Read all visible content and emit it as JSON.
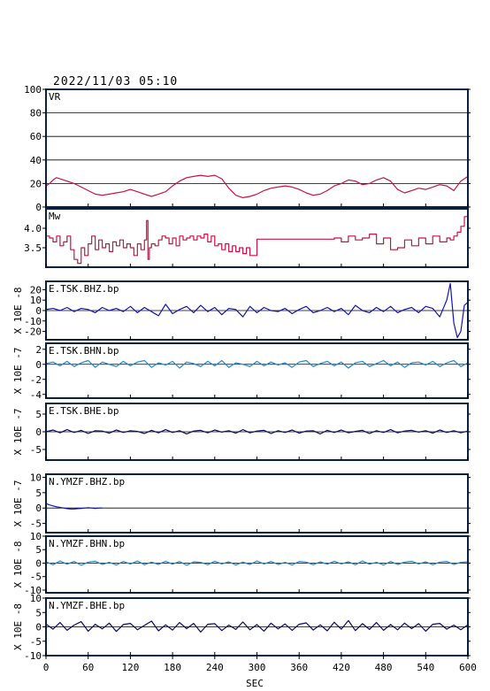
{
  "header": {
    "datetime": "2022/11/03 05:10"
  },
  "colors": {
    "frame": "#0a1f44",
    "vr": "#cc1144",
    "mw": "#cc1144",
    "dark_blue": "#1414b4",
    "light_blue": "#1e8ad6",
    "navy": "#0a0a60"
  },
  "chart_data": [
    {
      "type": "line",
      "name": "vr-panel",
      "label": "VR",
      "ylabel": "",
      "ylim": [
        0,
        100
      ],
      "yticks": [
        0,
        20,
        40,
        60,
        80,
        100
      ],
      "grid": true,
      "color": "vr",
      "x": [
        0,
        5,
        10,
        15,
        20,
        25,
        30,
        40,
        50,
        60,
        70,
        80,
        90,
        100,
        110,
        120,
        130,
        140,
        150,
        160,
        170,
        180,
        190,
        200,
        210,
        220,
        230,
        240,
        250,
        260,
        270,
        280,
        290,
        300,
        310,
        320,
        330,
        340,
        350,
        360,
        370,
        380,
        390,
        400,
        410,
        420,
        430,
        440,
        450,
        460,
        470,
        480,
        490,
        500,
        510,
        520,
        530,
        540,
        550,
        560,
        570,
        580,
        590,
        600
      ],
      "y": [
        18,
        20,
        23,
        25,
        24,
        23,
        22,
        20,
        17,
        14,
        11,
        10,
        11,
        12,
        13,
        15,
        13,
        11,
        9,
        11,
        13,
        18,
        22,
        25,
        26,
        27,
        26,
        27,
        24,
        16,
        10,
        8,
        9,
        11,
        14,
        16,
        17,
        18,
        17,
        15,
        12,
        10,
        11,
        14,
        18,
        20,
        23,
        22,
        19,
        20,
        23,
        25,
        22,
        15,
        12,
        14,
        16,
        15,
        17,
        19,
        18,
        14,
        22,
        26
      ]
    },
    {
      "type": "line",
      "name": "mw-panel",
      "label": "Mw",
      "ylabel": "",
      "ylim": [
        3.0,
        4.5
      ],
      "yticks": [
        3.5,
        4.0
      ],
      "ytick_labels": [
        "3.5",
        "4.0"
      ],
      "grid": false,
      "color": "mw",
      "x": [
        0,
        5,
        10,
        15,
        20,
        25,
        30,
        35,
        40,
        45,
        50,
        55,
        60,
        65,
        70,
        75,
        80,
        85,
        90,
        95,
        100,
        105,
        110,
        115,
        120,
        125,
        130,
        135,
        140,
        143,
        145,
        147,
        150,
        155,
        160,
        165,
        170,
        175,
        180,
        185,
        190,
        195,
        200,
        205,
        210,
        215,
        220,
        225,
        230,
        235,
        240,
        245,
        250,
        255,
        260,
        265,
        270,
        275,
        280,
        285,
        290,
        300,
        310,
        320,
        330,
        340,
        350,
        360,
        370,
        380,
        390,
        400,
        410,
        420,
        430,
        440,
        450,
        460,
        470,
        480,
        490,
        500,
        510,
        520,
        530,
        540,
        550,
        560,
        570,
        575,
        580,
        585,
        590,
        595,
        600
      ],
      "y": [
        3.8,
        3.75,
        3.65,
        3.8,
        3.55,
        3.65,
        3.8,
        3.45,
        3.2,
        3.1,
        3.5,
        3.3,
        3.6,
        3.8,
        3.45,
        3.7,
        3.5,
        3.6,
        3.4,
        3.65,
        3.55,
        3.7,
        3.5,
        3.6,
        3.5,
        3.3,
        3.6,
        3.45,
        3.7,
        4.2,
        3.2,
        3.5,
        3.6,
        3.55,
        3.7,
        3.8,
        3.75,
        3.6,
        3.75,
        3.55,
        3.8,
        3.7,
        3.75,
        3.8,
        3.7,
        3.8,
        3.75,
        3.85,
        3.65,
        3.8,
        3.55,
        3.6,
        3.45,
        3.6,
        3.4,
        3.55,
        3.4,
        3.5,
        3.35,
        3.5,
        3.3,
        3.72,
        3.72,
        3.72,
        3.72,
        3.72,
        3.72,
        3.72,
        3.72,
        3.72,
        3.72,
        3.72,
        3.75,
        3.65,
        3.8,
        3.7,
        3.75,
        3.85,
        3.6,
        3.75,
        3.45,
        3.5,
        3.7,
        3.55,
        3.75,
        3.6,
        3.8,
        3.65,
        3.75,
        3.7,
        3.8,
        3.9,
        4.05,
        4.3,
        4.25
      ]
    },
    {
      "type": "line",
      "name": "tsk-bhz-panel",
      "label": "E.TSK.BHZ.bp",
      "ylabel": "X 10E -8",
      "ylim": [
        -28,
        28
      ],
      "yticks": [
        -20,
        -10,
        0,
        10,
        20
      ],
      "ytick_labels": [
        "-20",
        "-10",
        "0",
        "10",
        "20"
      ],
      "grid": false,
      "color": "dark_blue",
      "baseline": 0,
      "x": [
        0,
        10,
        20,
        30,
        40,
        50,
        60,
        70,
        80,
        90,
        100,
        110,
        120,
        130,
        140,
        150,
        160,
        170,
        180,
        190,
        200,
        210,
        220,
        230,
        240,
        250,
        260,
        270,
        280,
        290,
        300,
        310,
        320,
        330,
        340,
        350,
        360,
        370,
        380,
        390,
        400,
        410,
        420,
        430,
        440,
        450,
        460,
        470,
        480,
        490,
        500,
        510,
        520,
        530,
        540,
        550,
        560,
        570,
        575,
        580,
        585,
        590,
        595,
        600
      ],
      "y": [
        1,
        2,
        0,
        3,
        -1,
        2,
        1,
        -2,
        3,
        0,
        2,
        -1,
        4,
        -2,
        3,
        -1,
        -5,
        6,
        -3,
        1,
        4,
        -2,
        5,
        -1,
        3,
        -4,
        2,
        1,
        -6,
        4,
        -2,
        3,
        0,
        -1,
        2,
        -3,
        1,
        4,
        -2,
        0,
        3,
        -1,
        2,
        -4,
        5,
        0,
        -2,
        3,
        -1,
        4,
        -2,
        1,
        3,
        -2,
        4,
        2,
        -6,
        10,
        26,
        -12,
        -26,
        -20,
        5,
        8
      ]
    },
    {
      "type": "line",
      "name": "tsk-bhn-panel",
      "label": "E.TSK.BHN.bp",
      "ylabel": "X 10E -7",
      "ylim": [
        -4.5,
        2.8
      ],
      "yticks": [
        -4,
        -2,
        0,
        2
      ],
      "ytick_labels": [
        "-4",
        "-2",
        "0",
        "2"
      ],
      "grid": false,
      "color": "light_blue",
      "baseline": 0,
      "x": [
        0,
        10,
        20,
        30,
        40,
        50,
        60,
        70,
        80,
        90,
        100,
        110,
        120,
        130,
        140,
        150,
        160,
        170,
        180,
        190,
        200,
        210,
        220,
        230,
        240,
        250,
        260,
        270,
        280,
        290,
        300,
        310,
        320,
        330,
        340,
        350,
        360,
        370,
        380,
        390,
        400,
        410,
        420,
        430,
        440,
        450,
        460,
        470,
        480,
        490,
        500,
        510,
        520,
        530,
        540,
        550,
        560,
        570,
        580,
        590,
        600
      ],
      "y": [
        0.1,
        0.3,
        -0.2,
        0.4,
        -0.3,
        0.2,
        0.5,
        -0.4,
        0.3,
        0,
        -0.3,
        0.4,
        -0.2,
        0.3,
        0.5,
        -0.4,
        0.2,
        -0.1,
        0.4,
        -0.5,
        0.3,
        0.1,
        -0.3,
        0.4,
        -0.2,
        0.5,
        -0.4,
        0.2,
        0,
        -0.3,
        0.4,
        -0.2,
        0.3,
        -0.1,
        0.2,
        -0.4,
        0.3,
        0.5,
        -0.3,
        0.1,
        0.4,
        -0.2,
        0.3,
        -0.5,
        0.2,
        0.4,
        -0.3,
        0.1,
        0.5,
        -0.2,
        0.3,
        -0.4,
        0.2,
        0.3,
        -0.1,
        0.4,
        -0.3,
        0.2,
        0.5,
        -0.3,
        0.2
      ]
    },
    {
      "type": "line",
      "name": "tsk-bhe-panel",
      "label": "E.TSK.BHE.bp",
      "ylabel": "X 10E -7",
      "ylim": [
        -8,
        8
      ],
      "yticks": [
        -5,
        0,
        5
      ],
      "ytick_labels": [
        "-5",
        "0",
        "5"
      ],
      "grid": false,
      "color": "navy",
      "baseline": 0,
      "x": [
        0,
        10,
        20,
        30,
        40,
        50,
        60,
        70,
        80,
        90,
        100,
        110,
        120,
        130,
        140,
        150,
        160,
        170,
        180,
        190,
        200,
        210,
        220,
        230,
        240,
        250,
        260,
        270,
        280,
        290,
        300,
        310,
        320,
        330,
        340,
        350,
        360,
        370,
        380,
        390,
        400,
        410,
        420,
        430,
        440,
        450,
        460,
        470,
        480,
        490,
        500,
        510,
        520,
        530,
        540,
        550,
        560,
        570,
        580,
        590,
        600
      ],
      "y": [
        0,
        0.5,
        -0.3,
        0.6,
        -0.2,
        0.4,
        -0.5,
        0.3,
        0.2,
        -0.4,
        0.5,
        -0.2,
        0.3,
        0.1,
        -0.5,
        0.4,
        -0.3,
        0.6,
        -0.2,
        0.3,
        -0.6,
        0.2,
        0.4,
        -0.3,
        0.5,
        -0.1,
        0.3,
        -0.4,
        0.6,
        -0.3,
        0.2,
        0.4,
        -0.5,
        0.3,
        -0.2,
        0.5,
        -0.4,
        0.2,
        0.3,
        -0.6,
        0.4,
        -0.2,
        0.5,
        -0.3,
        0.1,
        0.4,
        -0.5,
        0.3,
        -0.2,
        0.6,
        -0.3,
        0.2,
        0.4,
        -0.1,
        0.3,
        -0.4,
        0.5,
        -0.2,
        0.3,
        -0.3,
        0.2
      ]
    },
    {
      "type": "line",
      "name": "ymzf-bhz-panel",
      "label": "N.YMZF.BHZ.bp",
      "ylabel": "X 10E -7",
      "ylim": [
        -8,
        11
      ],
      "yticks": [
        -5,
        0,
        5,
        10
      ],
      "ytick_labels": [
        "-5",
        "0",
        "5",
        "10"
      ],
      "grid": false,
      "color": "dark_blue",
      "baseline": 0,
      "x": [
        0,
        5,
        10,
        15,
        20,
        25,
        30,
        35,
        40,
        45,
        50,
        55,
        60,
        65,
        70,
        75,
        80
      ],
      "y": [
        1.5,
        1.0,
        0.7,
        0.4,
        0.2,
        0,
        -0.2,
        -0.3,
        -0.3,
        -0.2,
        -0.1,
        0,
        0.1,
        0,
        -0.1,
        0,
        0
      ]
    },
    {
      "type": "line",
      "name": "ymzf-bhn-panel",
      "label": "N.YMZF.BHN.bp",
      "ylabel": "X 10E -8",
      "ylim": [
        -11,
        10
      ],
      "yticks": [
        -10,
        -5,
        0,
        5,
        10
      ],
      "ytick_labels": [
        "-10",
        "-5",
        "0",
        "5",
        "10"
      ],
      "grid": false,
      "color": "light_blue",
      "baseline": 0,
      "x": [
        0,
        10,
        20,
        30,
        40,
        50,
        60,
        70,
        80,
        90,
        100,
        110,
        120,
        130,
        140,
        150,
        160,
        170,
        180,
        190,
        200,
        210,
        220,
        230,
        240,
        250,
        260,
        270,
        280,
        290,
        300,
        310,
        320,
        330,
        340,
        350,
        360,
        370,
        380,
        390,
        400,
        410,
        420,
        430,
        440,
        450,
        460,
        470,
        480,
        490,
        500,
        510,
        520,
        530,
        540,
        550,
        560,
        570,
        580,
        590,
        600
      ],
      "y": [
        0.5,
        -0.6,
        0.8,
        -0.4,
        0.6,
        -0.8,
        0.4,
        0.7,
        -0.5,
        0.3,
        -0.7,
        0.6,
        -0.3,
        0.8,
        -0.6,
        0.4,
        -0.5,
        0.7,
        -0.4,
        0.6,
        -0.8,
        0.5,
        0.3,
        -0.6,
        0.7,
        -0.3,
        0.5,
        -0.7,
        0.4,
        -0.5,
        0.8,
        -0.3,
        0.6,
        -0.5,
        0.3,
        -0.7,
        0.6,
        0.4,
        -0.6,
        0.5,
        -0.4,
        0.7,
        -0.3,
        0.5,
        -0.6,
        0.8,
        -0.4,
        0.3,
        -0.7,
        0.6,
        -0.5,
        0.4,
        0.7,
        -0.3,
        0.5,
        -0.6,
        0.4,
        0.6,
        -0.5,
        0.3,
        0.5
      ]
    },
    {
      "type": "line",
      "name": "ymzf-bhe-panel",
      "label": "N.YMZF.BHE.bp",
      "ylabel": "X 10E -8",
      "ylim": [
        -10,
        10
      ],
      "yticks": [
        -10,
        -5,
        0,
        5,
        10
      ],
      "ytick_labels": [
        "-10",
        "-5",
        "0",
        "5",
        "10"
      ],
      "grid": false,
      "color": "navy",
      "baseline": 0,
      "x": [
        0,
        10,
        20,
        30,
        40,
        50,
        60,
        70,
        80,
        90,
        100,
        110,
        120,
        130,
        140,
        150,
        160,
        170,
        180,
        190,
        200,
        210,
        220,
        230,
        240,
        250,
        260,
        270,
        280,
        290,
        300,
        310,
        320,
        330,
        340,
        350,
        360,
        370,
        380,
        390,
        400,
        410,
        420,
        430,
        440,
        450,
        460,
        470,
        480,
        490,
        500,
        510,
        520,
        530,
        540,
        550,
        560,
        570,
        580,
        590,
        600
      ],
      "y": [
        1,
        -0.8,
        1.5,
        -1.2,
        0.6,
        1.8,
        -1.5,
        0.9,
        -0.7,
        1.3,
        -1.6,
        0.8,
        1.2,
        -1.0,
        0.5,
        2.0,
        -1.4,
        0.7,
        -1.1,
        1.5,
        -0.6,
        1.2,
        -1.8,
        0.9,
        1.1,
        -1.3,
        0.6,
        -0.9,
        1.7,
        -1.0,
        0.8,
        -1.5,
        1.3,
        -0.7,
        1.0,
        -1.2,
        0.9,
        1.4,
        -1.1,
        0.7,
        -1.4,
        1.6,
        -0.8,
        2.2,
        -1.3,
        1.1,
        -0.9,
        1.5,
        -1.2,
        0.8,
        -1.0,
        1.3,
        -0.6,
        1.1,
        -1.5,
        0.9,
        1.2,
        -0.8,
        0.6,
        -1.0,
        0.7
      ]
    }
  ],
  "x_axis": {
    "ticks": [
      0,
      60,
      120,
      180,
      240,
      300,
      360,
      420,
      480,
      540,
      600
    ],
    "tick_labels": [
      "0",
      "60",
      "120",
      "180",
      "240",
      "300",
      "360",
      "420",
      "480",
      "540",
      "600"
    ],
    "xlim": [
      0,
      600
    ],
    "xlabel": "SEC"
  }
}
